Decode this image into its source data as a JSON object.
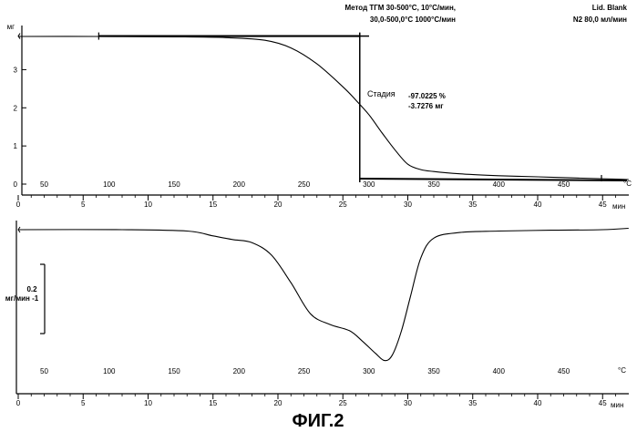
{
  "header": {
    "line1_left": "Метод ТГМ 30-500°C, 10°C/мин,",
    "line1_right": "Lid. Blank",
    "line2_left": "30,0-500,0°C 1000°C/мин",
    "line2_right": "N2 80,0 мл/мин"
  },
  "caption": "ФИГ.2",
  "chart_data": [
    {
      "type": "line",
      "title": "",
      "ylabel": "мг",
      "xlabel": "мин",
      "temp_unit": "°C",
      "y_ticks": [
        0,
        1,
        2,
        3
      ],
      "ylim": [
        0,
        4
      ],
      "time_ticks": [
        0,
        5,
        10,
        15,
        20,
        25,
        30,
        35,
        40,
        45
      ],
      "time_lim": [
        0,
        47
      ],
      "temp_ticks": [
        50,
        100,
        150,
        200,
        250,
        300,
        350,
        400,
        450
      ],
      "step_annotation": {
        "label": "Стадия",
        "percent": "-97.0225 %",
        "mass": "-3.7276 мг",
        "t_start_min": 6.2,
        "t_end_min": 26.3,
        "mass_start": 3.88,
        "mass_end": 0.1
      },
      "series": [
        {
          "x": [
            0.0,
            6.0,
            12.0,
            16.0,
            19.0,
            21.0,
            23.0,
            25.0,
            26.0,
            27.0,
            28.0,
            29.0,
            30.0,
            31.0,
            32.0,
            34.0,
            37.0,
            40.0,
            43.0,
            46.0,
            47.0
          ],
          "y": [
            3.87,
            3.87,
            3.86,
            3.84,
            3.77,
            3.57,
            3.15,
            2.55,
            2.2,
            1.82,
            1.35,
            0.9,
            0.52,
            0.38,
            0.33,
            0.27,
            0.22,
            0.19,
            0.16,
            0.13,
            0.12
          ]
        }
      ]
    },
    {
      "type": "line",
      "title": "",
      "xlabel": "мин",
      "temp_unit": "°C",
      "scale_bar_value": "0.2",
      "scale_bar_unit": "мг/мин -1",
      "time_ticks": [
        0,
        5,
        10,
        15,
        20,
        25,
        30,
        35,
        40,
        45
      ],
      "time_lim": [
        0,
        47
      ],
      "temp_ticks": [
        50,
        100,
        150,
        200,
        250,
        300,
        350,
        400,
        450
      ],
      "ylim": [
        -0.5,
        0.02
      ],
      "series": [
        {
          "x": [
            0.0,
            8.0,
            13.0,
            15.0,
            16.5,
            18.0,
            19.5,
            21.0,
            22.5,
            24.0,
            25.5,
            26.5,
            27.5,
            28.2,
            28.8,
            29.5,
            30.2,
            31.0,
            32.0,
            34.0,
            37.0,
            41.0,
            45.0,
            47.0
          ],
          "y": [
            0.0,
            0.0,
            -0.005,
            -0.022,
            -0.035,
            -0.046,
            -0.09,
            -0.188,
            -0.298,
            -0.336,
            -0.358,
            -0.395,
            -0.438,
            -0.464,
            -0.445,
            -0.36,
            -0.238,
            -0.1,
            -0.03,
            -0.01,
            -0.005,
            -0.002,
            0.0,
            0.005
          ]
        }
      ]
    }
  ]
}
